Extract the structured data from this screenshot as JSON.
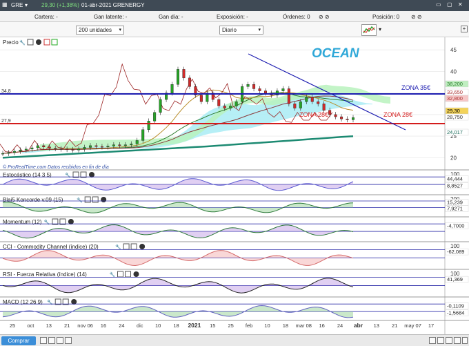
{
  "topbar": {
    "ticker": "GRE",
    "price": "29,30 (+1,38%)",
    "date_name": "01-abr-2021 GRENERGY",
    "color": "#3f4a55"
  },
  "infobar": {
    "cartera": "Cartera: -",
    "ganancia_latente": "Gan latente: -",
    "ganancia_dia": "Gan día: -",
    "exposicion": "Exposición: -",
    "ordenes": "Órdenes: 0",
    "posicion": "Posición: 0"
  },
  "controls": {
    "units": "200 unidades",
    "period": "Diario"
  },
  "bottombar": {
    "buy_label": "Comprar"
  },
  "chart_data": [
    {
      "type": "line",
      "panel": "price",
      "label": "Precio",
      "annotation_title": "OCEAN",
      "watermark": "© ProRealTime.com  Datos recibidos en fin de día",
      "yaxis_ticks": [
        20,
        25,
        30,
        35,
        40,
        45
      ],
      "ylim": [
        17.5,
        46
      ],
      "horizontal_lines": [
        {
          "value": 34.8,
          "label": "34,8",
          "color": "#1c1cb0"
        },
        {
          "value": 27.9,
          "label": "27,9",
          "color": "#d41c1c"
        }
      ],
      "zone_labels": [
        {
          "text": "ZONA 35€",
          "color": "#1c1cb0"
        },
        {
          "text": "ZONA 28€",
          "color": "#d41c1c"
        },
        {
          "text": "ZONA 28€",
          "color": "#d41c1c"
        }
      ],
      "price_tags": [
        {
          "text": "38,200",
          "bg": "#bfeec0",
          "fg": "#2a7a2a"
        },
        {
          "text": "33,650",
          "bg": "#ffffff",
          "fg": "#a33"
        },
        {
          "text": "32,800",
          "bg": "#f6c7c7",
          "fg": "#a33"
        },
        {
          "text": "29,30",
          "bg": "#f3d35a",
          "fg": "#000"
        },
        {
          "text": "28,750",
          "bg": "#ffffff",
          "fg": "#333"
        },
        {
          "text": "24,017",
          "bg": "#ffffff",
          "fg": "#1a6b5a"
        }
      ],
      "x_labels": [
        "25",
        "oct",
        "13",
        "21",
        "nov 06",
        "16",
        "24",
        "dic",
        "10",
        "18",
        "2021",
        "15",
        "25",
        "feb",
        "10",
        "18",
        "mar 08",
        "16",
        "24",
        "abr",
        "13",
        "21",
        "may 07",
        "17"
      ],
      "series": [
        {
          "name": "Close",
          "values": [
            21,
            21.2,
            21.5,
            21.8,
            22,
            22.3,
            22.8,
            22.5,
            22.2,
            22.1,
            22,
            21.9,
            21.8,
            22,
            22.4,
            22.8,
            22.6,
            22.5,
            22.7,
            23,
            22.8,
            23,
            23.2,
            24,
            26.5,
            28.5,
            30.5,
            33.5,
            35,
            37,
            40.5,
            38.5,
            36.5,
            34.5,
            33,
            35,
            33.5,
            32,
            31.5,
            32,
            33,
            36.5,
            37,
            36,
            35.5,
            35,
            34.5,
            35.5,
            36,
            32.5,
            31.5,
            33,
            34,
            33,
            32.5,
            31,
            30,
            29.5,
            29,
            28.8,
            29.3
          ]
        }
      ]
    },
    {
      "type": "line",
      "panel": "indicator",
      "label": "Estocástico (14 3 5)",
      "tick_max": "100",
      "value_labels": [
        "44,444",
        "8,8527"
      ]
    },
    {
      "type": "line",
      "panel": "indicator",
      "label": "Blai5 Koncorde v.09 (15)",
      "tick_max": "200",
      "value_labels": [
        "15,239",
        "7,9271"
      ]
    },
    {
      "type": "line",
      "panel": "indicator",
      "label": "Momentum (12)",
      "value_labels": [
        "-4,7000"
      ]
    },
    {
      "type": "line",
      "panel": "indicator",
      "label": "CCI - Commodity Channel (índice) (20)",
      "tick_max": "100",
      "value_labels": [
        "-62,089"
      ]
    },
    {
      "type": "line",
      "panel": "indicator",
      "label": "RSI - Fuerza Relativa (índice) (14)",
      "tick_max": "100",
      "value_labels": [
        "41,369"
      ]
    },
    {
      "type": "line",
      "panel": "indicator",
      "label": "MACD (12 26 9)",
      "value_labels": [
        "-0,1109",
        "-1,5684"
      ]
    }
  ]
}
